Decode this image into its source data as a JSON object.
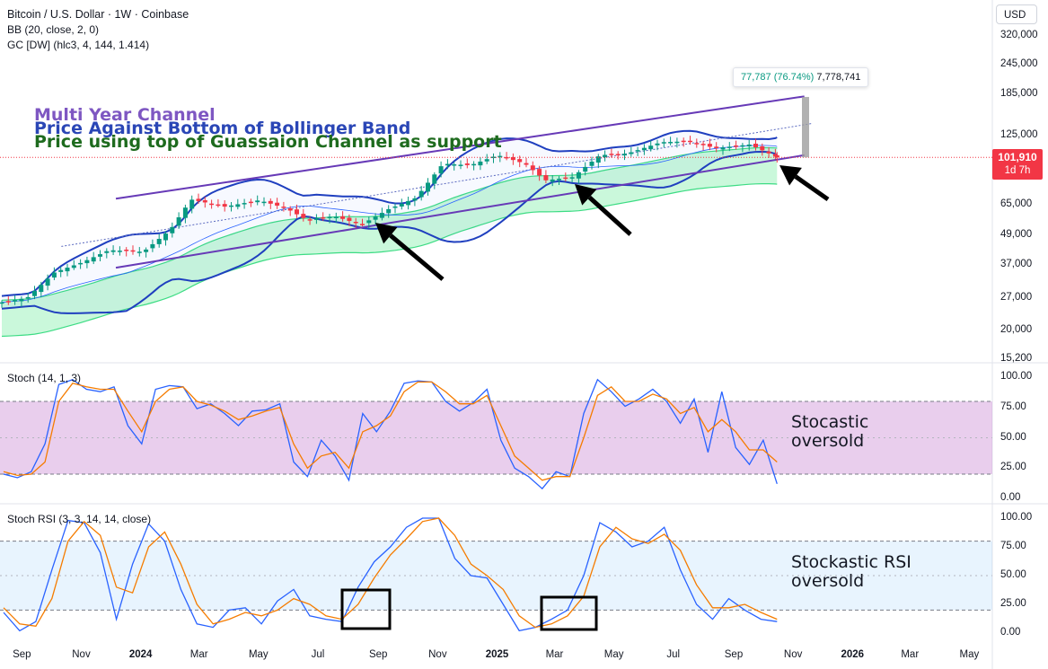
{
  "header": {
    "title": "Bitcoin / U.S. Dollar · 1W · Coinbase",
    "indicator_1": "BB (20, close, 2, 0)",
    "indicator_2": "GC [DW] (hlc3, 4, 144, 1.414)"
  },
  "currency_button": "USD",
  "annotations": {
    "line_1": "Multi Year Channel",
    "line_2": "Price Against Bottom of Bollinger Band",
    "line_3": "Price using top of Guassaion Channel as support",
    "color_1": "#7e57c2",
    "color_2": "#2a46b6",
    "color_3": "#1e6b1e"
  },
  "price_label": {
    "price": "101,910",
    "countdown": "1d 7h",
    "color": "#f23645"
  },
  "measure_tooltip": {
    "change": "77,787 (76.74%)",
    "volume": "7,778,741"
  },
  "price_axis_ticks": [
    "320,000",
    "245,000",
    "185,000",
    "125,000",
    "65,000",
    "49,000",
    "37,000",
    "27,000",
    "20,000",
    "15,200"
  ],
  "stoch_panel": {
    "title": "Stoch (14, 1, 3)",
    "ticks": [
      "100.00",
      "75.00",
      "50.00",
      "25.00",
      "0.00"
    ],
    "note_line_1": "Stocastic",
    "note_line_2": "oversold"
  },
  "stochrsi_panel": {
    "title": "Stoch RSI (3, 3, 14, 14, close)",
    "ticks": [
      "100.00",
      "75.00",
      "50.00",
      "25.00",
      "0.00"
    ],
    "note_line_1": "Stockastic RSI",
    "note_line_2": "oversold"
  },
  "time_axis": [
    "Sep",
    "Nov",
    "2024",
    "Mar",
    "May",
    "Jul",
    "Sep",
    "Nov",
    "2025",
    "Mar",
    "May",
    "Jul",
    "Sep",
    "Nov",
    "2026",
    "Mar",
    "May"
  ],
  "chart_data": [
    {
      "type": "candlestick",
      "title": "Bitcoin / U.S. Dollar · 1W · Coinbase",
      "scale": "log",
      "ylim": [
        15200,
        330000
      ],
      "x_range": [
        "2023-08-28",
        "2026-05-20"
      ],
      "last_price": 101910,
      "weekly_closes": [
        {
          "t": "2023-08-28",
          "c": 25900
        },
        {
          "t": "2023-09-25",
          "c": 27100
        },
        {
          "t": "2023-10-23",
          "c": 34500
        },
        {
          "t": "2023-11-20",
          "c": 37800
        },
        {
          "t": "2023-12-18",
          "c": 42500
        },
        {
          "t": "2024-01-22",
          "c": 41800
        },
        {
          "t": "2024-02-19",
          "c": 51500
        },
        {
          "t": "2024-03-11",
          "c": 68500
        },
        {
          "t": "2024-04-15",
          "c": 64000
        },
        {
          "t": "2024-05-20",
          "c": 68000
        },
        {
          "t": "2024-06-17",
          "c": 63000
        },
        {
          "t": "2024-07-08",
          "c": 56500
        },
        {
          "t": "2024-08-05",
          "c": 58500
        },
        {
          "t": "2024-09-02",
          "c": 54000
        },
        {
          "t": "2024-09-30",
          "c": 62500
        },
        {
          "t": "2024-10-28",
          "c": 69500
        },
        {
          "t": "2024-11-25",
          "c": 96000
        },
        {
          "t": "2024-12-23",
          "c": 94500
        },
        {
          "t": "2025-01-20",
          "c": 104000
        },
        {
          "t": "2025-02-17",
          "c": 96000
        },
        {
          "t": "2025-03-10",
          "c": 82000
        },
        {
          "t": "2025-04-07",
          "c": 84500
        },
        {
          "t": "2025-05-05",
          "c": 104000
        },
        {
          "t": "2025-06-02",
          "c": 105500
        },
        {
          "t": "2025-07-07",
          "c": 117500
        },
        {
          "t": "2025-08-04",
          "c": 118500
        },
        {
          "t": "2025-09-01",
          "c": 111000
        },
        {
          "t": "2025-10-06",
          "c": 115000
        },
        {
          "t": "2025-11-03",
          "c": 101910
        }
      ],
      "overlays": [
        "Bollinger Bands (20, 2)",
        "Gaussian Channel",
        "Multi-year channel lines"
      ]
    },
    {
      "type": "line",
      "title": "Stoch (14, 1, 3)",
      "ylim": [
        0,
        100
      ],
      "bands": [
        20,
        80
      ],
      "series": [
        {
          "name": "%K",
          "color": "#2962ff",
          "points": [
            [
              0,
              20
            ],
            [
              1,
              17
            ],
            [
              2,
              22
            ],
            [
              3,
              45
            ],
            [
              4,
              94
            ],
            [
              5,
              98
            ],
            [
              6,
              90
            ],
            [
              7,
              88
            ],
            [
              8,
              92
            ],
            [
              9,
              60
            ],
            [
              10,
              45
            ],
            [
              11,
              90
            ],
            [
              12,
              93
            ],
            [
              13,
              92
            ],
            [
              14,
              74
            ],
            [
              15,
              78
            ],
            [
              16,
              70
            ],
            [
              17,
              60
            ],
            [
              18,
              72
            ],
            [
              19,
              73
            ],
            [
              20,
              78
            ],
            [
              21,
              30
            ],
            [
              22,
              18
            ],
            [
              23,
              48
            ],
            [
              24,
              35
            ],
            [
              25,
              15
            ],
            [
              26,
              70
            ],
            [
              27,
              55
            ],
            [
              28,
              72
            ],
            [
              29,
              95
            ],
            [
              30,
              97
            ],
            [
              31,
              96
            ],
            [
              32,
              80
            ],
            [
              33,
              72
            ],
            [
              34,
              79
            ],
            [
              35,
              90
            ],
            [
              36,
              48
            ],
            [
              37,
              25
            ],
            [
              38,
              18
            ],
            [
              39,
              8
            ],
            [
              40,
              22
            ],
            [
              41,
              18
            ],
            [
              42,
              70
            ],
            [
              43,
              98
            ],
            [
              44,
              88
            ],
            [
              45,
              76
            ],
            [
              46,
              82
            ],
            [
              47,
              90
            ],
            [
              48,
              80
            ],
            [
              49,
              62
            ],
            [
              50,
              82
            ],
            [
              51,
              38
            ],
            [
              52,
              88
            ],
            [
              53,
              42
            ],
            [
              54,
              28
            ],
            [
              55,
              48
            ],
            [
              56,
              12
            ]
          ]
        },
        {
          "name": "%D",
          "color": "#f57c00",
          "points": [
            [
              0,
              22
            ],
            [
              1,
              19
            ],
            [
              2,
              20
            ],
            [
              3,
              30
            ],
            [
              4,
              80
            ],
            [
              5,
              95
            ],
            [
              6,
              92
            ],
            [
              7,
              90
            ],
            [
              8,
              90
            ],
            [
              9,
              72
            ],
            [
              10,
              55
            ],
            [
              11,
              80
            ],
            [
              12,
              90
            ],
            [
              13,
              92
            ],
            [
              14,
              80
            ],
            [
              15,
              77
            ],
            [
              16,
              72
            ],
            [
              17,
              65
            ],
            [
              18,
              68
            ],
            [
              19,
              72
            ],
            [
              20,
              75
            ],
            [
              21,
              45
            ],
            [
              22,
              25
            ],
            [
              23,
              35
            ],
            [
              24,
              38
            ],
            [
              25,
              25
            ],
            [
              26,
              55
            ],
            [
              27,
              60
            ],
            [
              28,
              68
            ],
            [
              29,
              88
            ],
            [
              30,
              96
            ],
            [
              31,
              96
            ],
            [
              32,
              88
            ],
            [
              33,
              78
            ],
            [
              34,
              78
            ],
            [
              35,
              85
            ],
            [
              36,
              60
            ],
            [
              37,
              35
            ],
            [
              38,
              25
            ],
            [
              39,
              15
            ],
            [
              40,
              18
            ],
            [
              41,
              18
            ],
            [
              42,
              50
            ],
            [
              43,
              85
            ],
            [
              44,
              92
            ],
            [
              45,
              80
            ],
            [
              46,
              80
            ],
            [
              47,
              86
            ],
            [
              48,
              82
            ],
            [
              49,
              70
            ],
            [
              50,
              75
            ],
            [
              51,
              55
            ],
            [
              52,
              65
            ],
            [
              53,
              55
            ],
            [
              54,
              40
            ],
            [
              55,
              40
            ],
            [
              56,
              30
            ]
          ]
        }
      ]
    },
    {
      "type": "line",
      "title": "Stoch RSI (3, 3, 14, 14, close)",
      "ylim": [
        0,
        100
      ],
      "bands": [
        20,
        80
      ],
      "series": [
        {
          "name": "K",
          "color": "#2962ff",
          "points": [
            [
              0,
              18
            ],
            [
              1,
              2
            ],
            [
              2,
              10
            ],
            [
              3,
              55
            ],
            [
              4,
              98
            ],
            [
              5,
              96
            ],
            [
              6,
              70
            ],
            [
              7,
              12
            ],
            [
              8,
              60
            ],
            [
              9,
              95
            ],
            [
              10,
              80
            ],
            [
              11,
              38
            ],
            [
              12,
              8
            ],
            [
              13,
              5
            ],
            [
              14,
              20
            ],
            [
              15,
              22
            ],
            [
              16,
              8
            ],
            [
              17,
              28
            ],
            [
              18,
              38
            ],
            [
              19,
              15
            ],
            [
              20,
              12
            ],
            [
              21,
              10
            ],
            [
              22,
              40
            ],
            [
              23,
              62
            ],
            [
              24,
              75
            ],
            [
              25,
              92
            ],
            [
              26,
              100
            ],
            [
              27,
              100
            ],
            [
              28,
              65
            ],
            [
              29,
              50
            ],
            [
              30,
              48
            ],
            [
              31,
              25
            ],
            [
              32,
              2
            ],
            [
              33,
              5
            ],
            [
              34,
              12
            ],
            [
              35,
              20
            ],
            [
              36,
              50
            ],
            [
              37,
              96
            ],
            [
              38,
              88
            ],
            [
              39,
              75
            ],
            [
              40,
              80
            ],
            [
              41,
              92
            ],
            [
              42,
              55
            ],
            [
              43,
              25
            ],
            [
              44,
              12
            ],
            [
              45,
              30
            ],
            [
              46,
              20
            ],
            [
              47,
              12
            ],
            [
              48,
              10
            ]
          ]
        },
        {
          "name": "D",
          "color": "#f57c00",
          "points": [
            [
              0,
              22
            ],
            [
              1,
              8
            ],
            [
              2,
              6
            ],
            [
              3,
              30
            ],
            [
              4,
              80
            ],
            [
              5,
              97
            ],
            [
              6,
              85
            ],
            [
              7,
              40
            ],
            [
              8,
              35
            ],
            [
              9,
              75
            ],
            [
              10,
              88
            ],
            [
              11,
              60
            ],
            [
              12,
              25
            ],
            [
              13,
              8
            ],
            [
              14,
              12
            ],
            [
              15,
              18
            ],
            [
              16,
              15
            ],
            [
              17,
              20
            ],
            [
              18,
              30
            ],
            [
              19,
              25
            ],
            [
              20,
              15
            ],
            [
              21,
              12
            ],
            [
              22,
              25
            ],
            [
              23,
              48
            ],
            [
              24,
              68
            ],
            [
              25,
              82
            ],
            [
              26,
              97
            ],
            [
              27,
              100
            ],
            [
              28,
              85
            ],
            [
              29,
              60
            ],
            [
              30,
              50
            ],
            [
              31,
              38
            ],
            [
              32,
              15
            ],
            [
              33,
              5
            ],
            [
              34,
              8
            ],
            [
              35,
              15
            ],
            [
              36,
              32
            ],
            [
              37,
              75
            ],
            [
              38,
              92
            ],
            [
              39,
              82
            ],
            [
              40,
              78
            ],
            [
              41,
              86
            ],
            [
              42,
              72
            ],
            [
              43,
              42
            ],
            [
              44,
              22
            ],
            [
              45,
              22
            ],
            [
              46,
              25
            ],
            [
              47,
              18
            ],
            [
              48,
              12
            ]
          ]
        }
      ]
    }
  ]
}
